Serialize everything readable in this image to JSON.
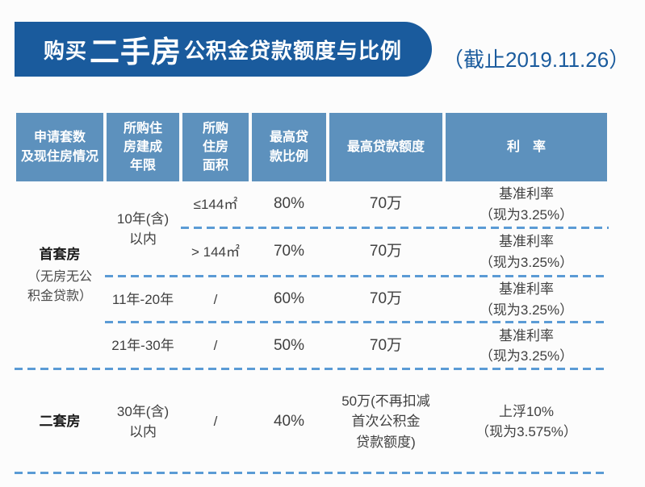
{
  "banner": {
    "title_prefix": "购买",
    "title_highlight": "二手房",
    "title_suffix": "公积金贷款额度与比例",
    "date_note": "（截止2019.11.26）"
  },
  "colors": {
    "banner_blue": "#1a5b9d",
    "header_blue": "#5d91bd",
    "dash_blue": "#5b9bd5"
  },
  "table": {
    "headers": [
      "申请套数\n及现住房情况",
      "所购住\n房建成\n年限",
      "所购\n住房\n面积",
      "最高贷\n款比例",
      "最高贷款额度",
      "利　率"
    ],
    "groups": [
      {
        "label": "首套房",
        "note": "（无房无公\n积金贷款）"
      },
      {
        "label": "二套房",
        "note": ""
      }
    ],
    "rows": [
      {
        "years": "10年(含)\n以内",
        "area": "≤144㎡",
        "ratio": "80%",
        "amount": "70万",
        "rate": "基准利率\n（现为3.25%）"
      },
      {
        "years": "",
        "area": "> 144㎡",
        "ratio": "70%",
        "amount": "70万",
        "rate": "基准利率\n（现为3.25%）"
      },
      {
        "years": "11年-20年",
        "area": "/",
        "ratio": "60%",
        "amount": "70万",
        "rate": "基准利率\n（现为3.25%）"
      },
      {
        "years": "21年-30年",
        "area": "/",
        "ratio": "50%",
        "amount": "70万",
        "rate": "基准利率\n（现为3.25%）"
      },
      {
        "years": "30年(含)\n以内",
        "area": "/",
        "ratio": "40%",
        "amount": "50万(不再扣减\n首次公积金\n贷款额度)",
        "rate": "上浮10%\n（现为3.575%）"
      }
    ]
  },
  "chart_data": {
    "type": "table",
    "title": "购买二手房公积金贷款额度与比例",
    "subtitle": "（截止2019.11.26）",
    "columns": [
      "申请套数及现住房情况",
      "所购住房建成年限",
      "所购住房面积",
      "最高贷款比例",
      "最高贷款额度",
      "利率"
    ],
    "rows": [
      [
        "首套房（无房无公积金贷款）",
        "10年(含)以内",
        "≤144㎡",
        "80%",
        "70万",
        "基准利率（现为3.25%）"
      ],
      [
        "首套房（无房无公积金贷款）",
        "10年(含)以内",
        ">144㎡",
        "70%",
        "70万",
        "基准利率（现为3.25%）"
      ],
      [
        "首套房（无房无公积金贷款）",
        "11年-20年",
        "/",
        "60%",
        "70万",
        "基准利率（现为3.25%）"
      ],
      [
        "首套房（无房无公积金贷款）",
        "21年-30年",
        "/",
        "50%",
        "70万",
        "基准利率（现为3.25%）"
      ],
      [
        "二套房",
        "30年(含)以内",
        "/",
        "40%",
        "50万(不再扣减首次公积金贷款额度)",
        "上浮10%（现为3.575%）"
      ]
    ]
  }
}
